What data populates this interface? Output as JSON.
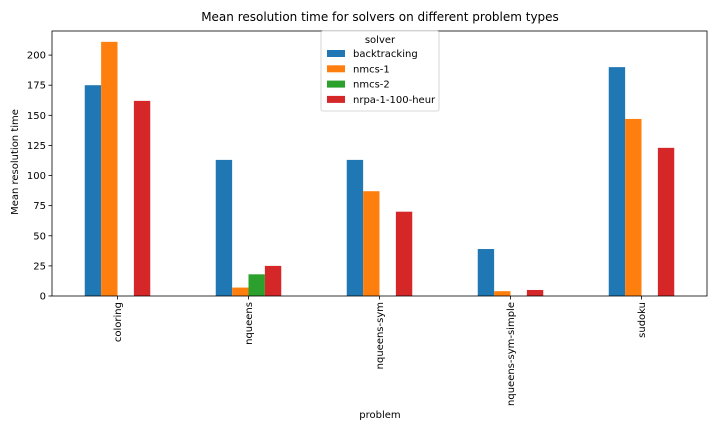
{
  "chart_data": {
    "type": "bar",
    "title": "Mean resolution time for solvers on different problem types",
    "xlabel": "problem",
    "ylabel": "Mean resolution time",
    "categories": [
      "coloring",
      "nqueens",
      "nqueens-sym",
      "nqueens-sym-simple",
      "sudoku"
    ],
    "series": [
      {
        "name": "backtracking",
        "color": "#1f77b4",
        "values": [
          175,
          113,
          113,
          39,
          190
        ]
      },
      {
        "name": "nmcs-1",
        "color": "#ff7f0e",
        "values": [
          211,
          7,
          87,
          4,
          147
        ]
      },
      {
        "name": "nmcs-2",
        "color": "#2ca02c",
        "values": [
          0,
          18,
          0,
          0,
          0
        ]
      },
      {
        "name": "nrpa-1-100-heur",
        "color": "#d62728",
        "values": [
          162,
          25,
          70,
          5,
          123
        ]
      }
    ],
    "ylim": [
      0,
      220
    ],
    "yticks": [
      0,
      25,
      50,
      75,
      100,
      125,
      150,
      175,
      200
    ],
    "legend": {
      "title": "solver",
      "placement": "top-center"
    },
    "grid": false
  }
}
